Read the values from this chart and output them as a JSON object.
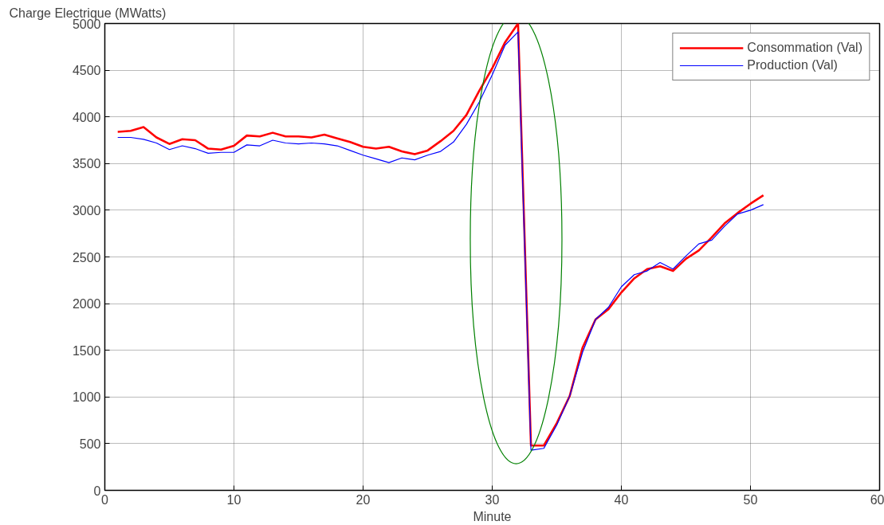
{
  "chart_data": {
    "type": "line",
    "xlabel": "Minute",
    "ylabel": "Charge Electrique (MWatts)",
    "x": [
      1,
      2,
      3,
      4,
      5,
      6,
      7,
      8,
      9,
      10,
      11,
      12,
      13,
      14,
      15,
      16,
      17,
      18,
      19,
      20,
      21,
      22,
      23,
      24,
      25,
      26,
      27,
      28,
      29,
      30,
      31,
      32,
      33,
      34,
      35,
      36,
      37,
      38,
      39,
      40,
      41,
      42,
      43,
      44,
      45,
      46,
      47,
      48,
      49,
      50,
      51
    ],
    "series": [
      {
        "name": "Consommation (Val)",
        "color": "#ff0000",
        "values": [
          3840,
          3850,
          3890,
          3780,
          3710,
          3760,
          3750,
          3660,
          3650,
          3690,
          3800,
          3790,
          3830,
          3790,
          3790,
          3780,
          3810,
          3770,
          3730,
          3680,
          3660,
          3680,
          3630,
          3600,
          3640,
          3740,
          3850,
          4020,
          4280,
          4520,
          4800,
          5000,
          480,
          480,
          720,
          1010,
          1530,
          1830,
          1940,
          2120,
          2270,
          2370,
          2400,
          2350,
          2480,
          2570,
          2710,
          2860,
          2970,
          3070,
          3160
        ]
      },
      {
        "name": "Production (Val)",
        "color": "#0000ff",
        "values": [
          3780,
          3780,
          3760,
          3720,
          3650,
          3690,
          3660,
          3610,
          3620,
          3620,
          3700,
          3690,
          3750,
          3720,
          3710,
          3720,
          3710,
          3690,
          3640,
          3590,
          3550,
          3510,
          3560,
          3540,
          3590,
          3630,
          3730,
          3920,
          4160,
          4450,
          4770,
          4910,
          430,
          450,
          700,
          1010,
          1480,
          1830,
          1960,
          2180,
          2310,
          2350,
          2440,
          2370,
          2510,
          2640,
          2680,
          2830,
          2960,
          3000,
          3060
        ]
      }
    ],
    "xlim": [
      0,
      60
    ],
    "xticks": [
      0,
      10,
      20,
      30,
      40,
      50,
      60
    ],
    "ylim": [
      0,
      5000
    ],
    "yticks": [
      0,
      500,
      1000,
      1500,
      2000,
      2500,
      3000,
      3500,
      4000,
      4500,
      5000
    ],
    "grid": true,
    "legend": "top right",
    "marker": "none",
    "line_style": "solid"
  }
}
